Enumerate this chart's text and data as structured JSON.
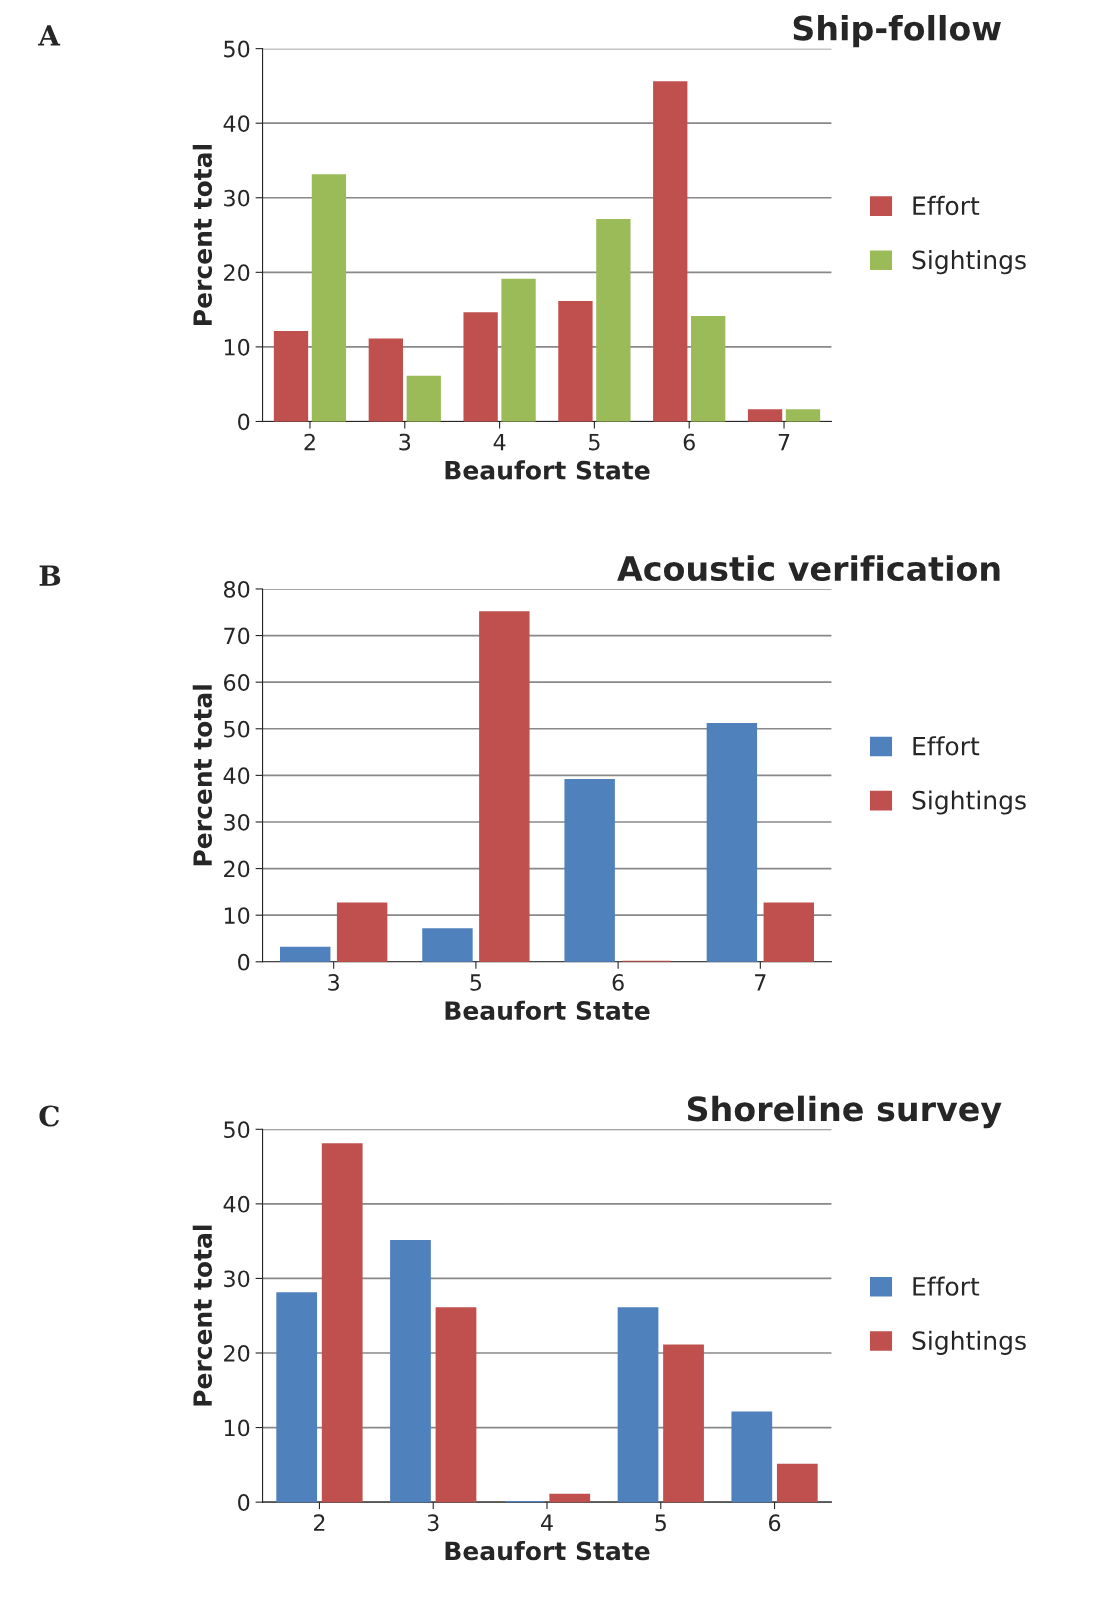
{
  "chart_data": [
    {
      "type": "bar",
      "title": "Ship-follow",
      "xlabel": "Beaufort State",
      "ylabel": "Percent total",
      "annotations": [
        "A"
      ],
      "categories": [
        "2",
        "3",
        "4",
        "5",
        "6",
        "7"
      ],
      "series": [
        {
          "name": "Effort",
          "color": "#c0504d",
          "values": [
            12,
            11,
            14.5,
            16,
            45.5,
            1.5
          ]
        },
        {
          "name": "Sightings",
          "color": "#9bbb59",
          "values": [
            33,
            6,
            19,
            27,
            14,
            1.5
          ]
        }
      ],
      "ylim": [
        0,
        50
      ],
      "yticks": [
        0,
        10,
        20,
        30,
        40,
        50
      ],
      "grid": "y",
      "legend": "right"
    },
    {
      "type": "bar",
      "title": "Acoustic verification",
      "xlabel": "Beaufort State",
      "ylabel": "Percent total",
      "annotations": [
        "B"
      ],
      "categories": [
        "3",
        "5",
        "6",
        "7"
      ],
      "series": [
        {
          "name": "Effort",
          "color": "#4f81bd",
          "values": [
            3,
            7,
            39,
            51
          ]
        },
        {
          "name": "Sightings",
          "color": "#c0504d",
          "values": [
            12.5,
            75,
            0,
            12.5
          ]
        }
      ],
      "ylim": [
        0,
        80
      ],
      "yticks": [
        0,
        10,
        20,
        30,
        40,
        50,
        60,
        70,
        80
      ],
      "grid": "y",
      "legend": "right"
    },
    {
      "type": "bar",
      "title": "Shoreline survey",
      "xlabel": "Beaufort State",
      "ylabel": "Percent total",
      "annotations": [
        "C"
      ],
      "categories": [
        "2",
        "3",
        "4",
        "5",
        "6"
      ],
      "series": [
        {
          "name": "Effort",
          "color": "#4f81bd",
          "values": [
            28,
            35,
            0,
            26,
            12
          ]
        },
        {
          "name": "Sightings",
          "color": "#c0504d",
          "values": [
            48,
            26,
            1,
            21,
            5
          ]
        }
      ],
      "ylim": [
        0,
        50
      ],
      "yticks": [
        0,
        10,
        20,
        30,
        40,
        50
      ],
      "grid": "y",
      "legend": "right"
    }
  ]
}
